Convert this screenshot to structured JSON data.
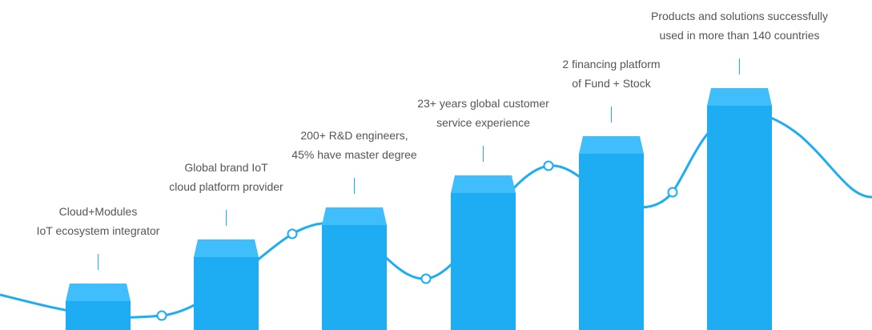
{
  "colors": {
    "bar_body": "#1eadf2",
    "bar_top": "#40bdfb",
    "curve": "#1eadf2",
    "text": "#555555"
  },
  "milestones": [
    {
      "line1": "Cloud+Modules",
      "line2": "IoT ecosystem integrator",
      "level": 1
    },
    {
      "line1": "Global brand IoT",
      "line2": "cloud platform provider",
      "level": 2
    },
    {
      "line1": "200+ R&D engineers,",
      "line2": "45% have master degree",
      "level": 3
    },
    {
      "line1": "23+ years global customer",
      "line2": "service experience",
      "level": 4
    },
    {
      "line1": "2 financing platform",
      "line2": "of Fund + Stock",
      "level": 5
    },
    {
      "line1": "Products and solutions successfully",
      "line2": "used in more than 140 countries",
      "level": 6
    }
  ]
}
